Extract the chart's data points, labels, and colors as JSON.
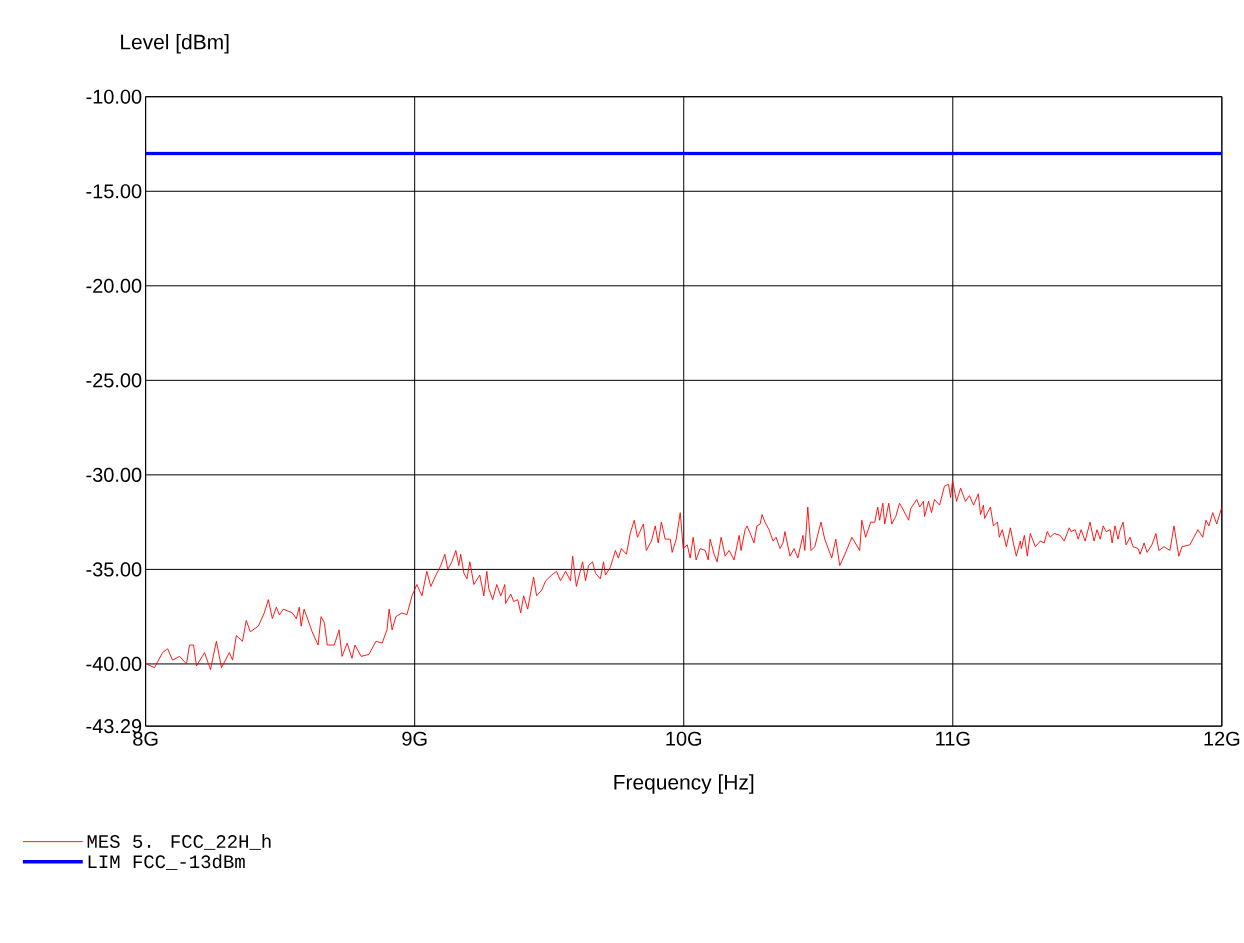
{
  "chart_data": {
    "type": "line",
    "xlabel": "Frequency [Hz]",
    "ylabel": "Level [dBm]",
    "xlim": [
      8,
      12
    ],
    "ylim": [
      -43.29,
      -10
    ],
    "xticks": [
      {
        "value": 8,
        "label": "8G"
      },
      {
        "value": 9,
        "label": "9G"
      },
      {
        "value": 10,
        "label": "10G"
      },
      {
        "value": 11,
        "label": "11G"
      },
      {
        "value": 12,
        "label": "12G"
      }
    ],
    "yticks": [
      {
        "value": -43.29,
        "label": "-43.29"
      },
      {
        "value": -40,
        "label": "-40.00"
      },
      {
        "value": -35,
        "label": "-35.00"
      },
      {
        "value": -30,
        "label": "-30.00"
      },
      {
        "value": -25,
        "label": "-25.00"
      },
      {
        "value": -20,
        "label": "-20.00"
      },
      {
        "value": -15,
        "label": "-15.00"
      },
      {
        "value": -10,
        "label": "-10.00"
      }
    ],
    "grid": true,
    "legend": "bottom",
    "marker": "none",
    "line_style": "solid",
    "series": [
      {
        "name": "MES  5. FCC_22H_h",
        "color": "#ff0000",
        "x": [
          8.003,
          8.033,
          8.063,
          8.082,
          8.1,
          8.126,
          8.152,
          8.163,
          8.178,
          8.189,
          8.219,
          8.241,
          8.263,
          8.282,
          8.311,
          8.323,
          8.337,
          8.36,
          8.374,
          8.389,
          8.419,
          8.441,
          8.456,
          8.471,
          8.486,
          8.497,
          8.512,
          8.545,
          8.56,
          8.571,
          8.578,
          8.589,
          8.619,
          8.641,
          8.652,
          8.664,
          8.675,
          8.701,
          8.719,
          8.73,
          8.749,
          8.767,
          8.778,
          8.801,
          8.83,
          8.856,
          8.879,
          8.897,
          8.905,
          8.916,
          8.93,
          8.953,
          8.971,
          8.99,
          9.008,
          9.027,
          9.045,
          9.06,
          9.079,
          9.097,
          9.112,
          9.123,
          9.138,
          9.153,
          9.164,
          9.171,
          9.183,
          9.194,
          9.205,
          9.22,
          9.242,
          9.257,
          9.268,
          9.275,
          9.29,
          9.305,
          9.32,
          9.335,
          9.338,
          9.357,
          9.368,
          9.383,
          9.394,
          9.405,
          9.42,
          9.442,
          9.453,
          9.472,
          9.487,
          9.509,
          9.527,
          9.542,
          9.561,
          9.579,
          9.587,
          9.601,
          9.624,
          9.635,
          9.646,
          9.661,
          9.672,
          9.69,
          9.702,
          9.709,
          9.727,
          9.746,
          9.757,
          9.768,
          9.787,
          9.801,
          9.816,
          9.828,
          9.85,
          9.861,
          9.88,
          9.894,
          9.905,
          9.917,
          9.931,
          9.95,
          9.957,
          9.972,
          9.987,
          9.998,
          10.013,
          10.024,
          10.035,
          10.046,
          10.061,
          10.08,
          10.091,
          10.098,
          10.113,
          10.124,
          10.139,
          10.154,
          10.169,
          10.187,
          10.206,
          10.213,
          10.228,
          10.235,
          10.25,
          10.261,
          10.272,
          10.284,
          10.291,
          10.302,
          10.317,
          10.332,
          10.343,
          10.358,
          10.369,
          10.376,
          10.395,
          10.41,
          10.424,
          10.443,
          10.45,
          10.461,
          10.473,
          10.487,
          10.51,
          10.524,
          10.55,
          10.565,
          10.58,
          10.599,
          10.625,
          10.654,
          10.662,
          10.676,
          10.695,
          10.71,
          10.721,
          10.728,
          10.74,
          10.747,
          10.762,
          10.773,
          10.788,
          10.802,
          10.814,
          10.836,
          10.843,
          10.866,
          10.877,
          10.891,
          10.895,
          10.91,
          10.921,
          10.932,
          10.951,
          10.969,
          10.984,
          10.992,
          10.999,
          11.014,
          11.029,
          11.047,
          11.062,
          11.077,
          11.095,
          11.103,
          11.114,
          11.118,
          11.14,
          11.151,
          11.166,
          11.173,
          11.184,
          11.199,
          11.214,
          11.225,
          11.236,
          11.251,
          11.255,
          11.266,
          11.277,
          11.288,
          11.307,
          11.325,
          11.34,
          11.351,
          11.362,
          11.377,
          11.399,
          11.414,
          11.433,
          11.44,
          11.455,
          11.466,
          11.477,
          11.492,
          11.51,
          11.525,
          11.536,
          11.548,
          11.559,
          11.57,
          11.585,
          11.592,
          11.603,
          11.614,
          11.622,
          11.633,
          11.644,
          11.659,
          11.67,
          11.689,
          11.696,
          11.711,
          11.722,
          11.74,
          11.755,
          11.766,
          11.785,
          11.807,
          11.822,
          11.84,
          11.852,
          11.881,
          11.896,
          11.911,
          11.929,
          11.941,
          11.952,
          11.966,
          11.981,
          12.0
        ],
        "values": [
          -40.0,
          -40.2,
          -39.4,
          -39.2,
          -39.8,
          -39.6,
          -40.0,
          -39.0,
          -39.0,
          -40.1,
          -39.4,
          -40.3,
          -38.8,
          -40.2,
          -39.4,
          -39.8,
          -38.5,
          -38.8,
          -37.7,
          -38.3,
          -38.0,
          -37.3,
          -36.6,
          -37.6,
          -37.0,
          -37.4,
          -37.1,
          -37.3,
          -37.6,
          -37.0,
          -38.0,
          -37.1,
          -38.3,
          -39.0,
          -37.5,
          -37.8,
          -39.0,
          -39.0,
          -38.2,
          -39.6,
          -38.9,
          -39.7,
          -39.0,
          -39.6,
          -39.5,
          -38.8,
          -38.9,
          -38.2,
          -37.1,
          -38.2,
          -37.5,
          -37.3,
          -37.4,
          -36.4,
          -35.8,
          -36.4,
          -35.1,
          -35.9,
          -35.3,
          -34.8,
          -34.2,
          -35.0,
          -34.6,
          -34.0,
          -34.8,
          -34.2,
          -35.2,
          -35.5,
          -34.6,
          -35.8,
          -35.3,
          -36.4,
          -35.1,
          -36.0,
          -36.6,
          -35.8,
          -36.4,
          -35.8,
          -36.8,
          -36.3,
          -36.7,
          -36.6,
          -37.3,
          -36.4,
          -37.1,
          -35.4,
          -36.4,
          -36.1,
          -35.6,
          -35.3,
          -35.1,
          -35.6,
          -35.1,
          -35.6,
          -34.3,
          -35.9,
          -34.6,
          -35.6,
          -34.8,
          -34.6,
          -35.2,
          -35.5,
          -34.6,
          -35.3,
          -34.9,
          -34.0,
          -34.4,
          -33.9,
          -34.2,
          -33.1,
          -32.4,
          -33.3,
          -32.6,
          -34.0,
          -33.5,
          -32.7,
          -33.6,
          -32.5,
          -33.4,
          -33.4,
          -34.1,
          -33.4,
          -32.0,
          -33.9,
          -33.7,
          -34.4,
          -33.3,
          -34.5,
          -33.9,
          -34.0,
          -34.5,
          -33.4,
          -34.2,
          -34.6,
          -33.3,
          -34.3,
          -34.0,
          -34.5,
          -33.2,
          -34.0,
          -32.9,
          -32.7,
          -33.2,
          -33.6,
          -32.7,
          -32.6,
          -32.1,
          -32.5,
          -32.9,
          -33.5,
          -33.3,
          -33.9,
          -33.6,
          -33.0,
          -34.3,
          -33.9,
          -34.4,
          -33.2,
          -34.0,
          -31.7,
          -34.0,
          -33.8,
          -32.5,
          -33.4,
          -34.4,
          -33.4,
          -34.8,
          -34.2,
          -33.3,
          -34.0,
          -32.4,
          -33.3,
          -32.5,
          -32.5,
          -31.7,
          -32.4,
          -31.5,
          -32.6,
          -31.5,
          -32.6,
          -32.2,
          -31.5,
          -31.8,
          -32.4,
          -31.8,
          -31.3,
          -31.7,
          -31.4,
          -32.2,
          -31.4,
          -32.0,
          -31.3,
          -31.6,
          -30.6,
          -30.5,
          -31.2,
          -30.3,
          -31.4,
          -30.7,
          -31.4,
          -31.1,
          -31.6,
          -31.0,
          -32.1,
          -31.6,
          -32.3,
          -31.7,
          -32.7,
          -32.5,
          -33.3,
          -32.9,
          -33.8,
          -32.8,
          -33.6,
          -34.3,
          -33.5,
          -33.9,
          -33.2,
          -34.3,
          -33.1,
          -33.8,
          -33.5,
          -33.6,
          -33.0,
          -33.3,
          -33.1,
          -33.2,
          -33.5,
          -32.8,
          -33.0,
          -32.9,
          -33.4,
          -32.9,
          -33.5,
          -32.5,
          -33.5,
          -32.9,
          -33.4,
          -32.7,
          -33.0,
          -32.9,
          -33.6,
          -32.7,
          -33.4,
          -32.9,
          -32.5,
          -33.7,
          -33.3,
          -33.8,
          -33.9,
          -34.2,
          -33.6,
          -34.1,
          -33.7,
          -33.1,
          -34.0,
          -33.8,
          -34.0,
          -32.7,
          -34.3,
          -33.8,
          -33.7,
          -33.3,
          -32.9,
          -33.3,
          -32.4,
          -32.7,
          -32.0,
          -32.6,
          -31.7
        ]
      },
      {
        "name": "LIM  FCC_-13dBm",
        "color": "#0000ff",
        "x": [
          8,
          12
        ],
        "values": [
          -13,
          -13
        ]
      }
    ]
  }
}
